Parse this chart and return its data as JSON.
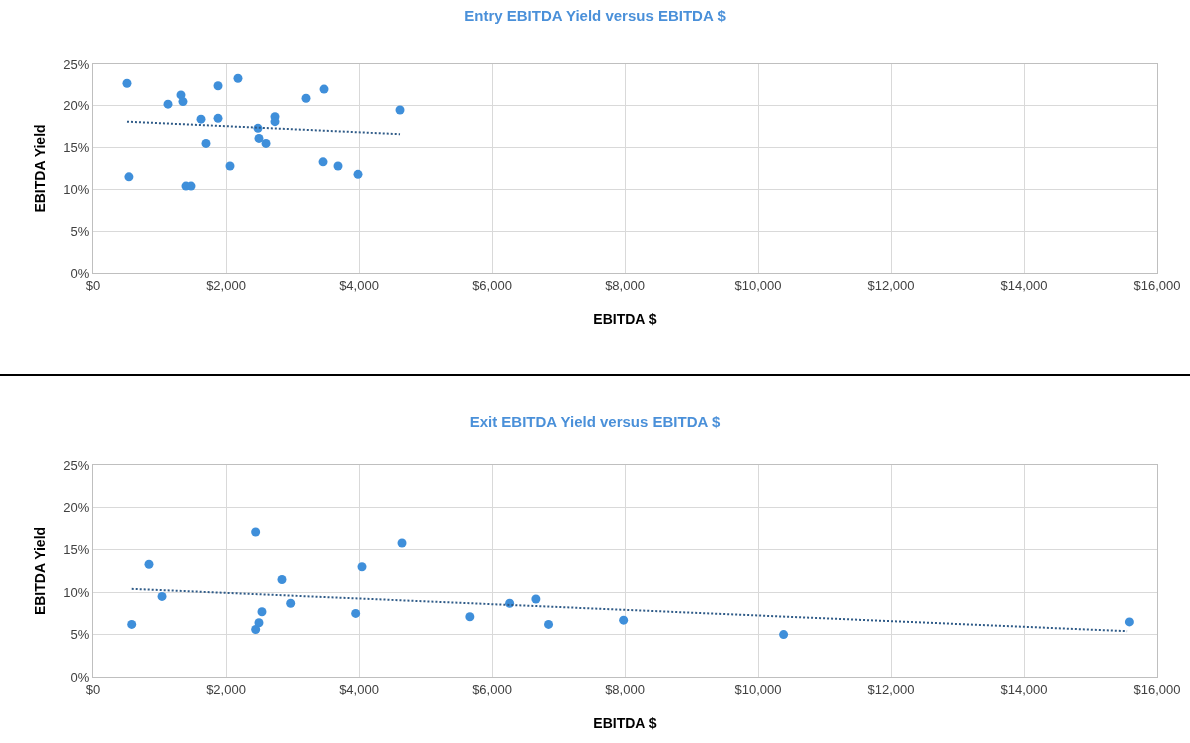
{
  "chart_data": [
    {
      "type": "scatter",
      "title": "Entry EBITDA Yield versus EBITDA $",
      "xlabel": "EBITDA $",
      "ylabel": "EBITDA Yield",
      "grid": true,
      "xlim": [
        0,
        16000
      ],
      "xticks": [
        {
          "value": 0,
          "label": "$0"
        },
        {
          "value": 2000,
          "label": "$2,000"
        },
        {
          "value": 4000,
          "label": "$4,000"
        },
        {
          "value": 6000,
          "label": "$6,000"
        },
        {
          "value": 8000,
          "label": "$8,000"
        },
        {
          "value": 10000,
          "label": "$10,000"
        },
        {
          "value": 12000,
          "label": "$12,000"
        },
        {
          "value": 14000,
          "label": "$14,000"
        },
        {
          "value": 16000,
          "label": "$16,000"
        }
      ],
      "ylim": [
        0,
        25
      ],
      "yticks": [
        {
          "value": 0,
          "label": "0%"
        },
        {
          "value": 5,
          "label": "5%"
        },
        {
          "value": 10,
          "label": "10%"
        },
        {
          "value": 15,
          "label": "15%"
        },
        {
          "value": 20,
          "label": "20%"
        },
        {
          "value": 25,
          "label": "25%"
        }
      ],
      "series": [
        {
          "marker": "circle",
          "color": "#3f8fda",
          "x": [
            511,
            540,
            1128,
            1323,
            1353,
            1398,
            1474,
            1624,
            1699,
            1880,
            1880,
            2060,
            2180,
            2481,
            2496,
            2602,
            2737,
            2737,
            3203,
            3474,
            3459,
            3684,
            3985,
            4617
          ],
          "values": [
            22.7,
            11.5,
            20.2,
            21.3,
            20.5,
            10.4,
            10.4,
            18.4,
            15.5,
            22.4,
            18.5,
            12.8,
            23.3,
            17.3,
            16.1,
            15.5,
            18.7,
            18.1,
            20.9,
            22.0,
            13.3,
            12.8,
            11.8,
            19.5
          ]
        },
        {
          "type": "line",
          "line_style": "dotted",
          "color": "#2e5a87",
          "x": [
            511,
            4617
          ],
          "values": [
            18.1,
            16.6
          ]
        }
      ]
    },
    {
      "type": "scatter",
      "title": "Exit EBITDA Yield versus EBITDA $",
      "xlabel": "EBITDA $",
      "ylabel": "EBITDA Yield",
      "grid": true,
      "xlim": [
        0,
        16000
      ],
      "xticks": [
        {
          "value": 0,
          "label": "$0"
        },
        {
          "value": 2000,
          "label": "$2,000"
        },
        {
          "value": 4000,
          "label": "$4,000"
        },
        {
          "value": 6000,
          "label": "$6,000"
        },
        {
          "value": 8000,
          "label": "$8,000"
        },
        {
          "value": 10000,
          "label": "$10,000"
        },
        {
          "value": 12000,
          "label": "$12,000"
        },
        {
          "value": 14000,
          "label": "$14,000"
        },
        {
          "value": 16000,
          "label": "$16,000"
        }
      ],
      "ylim": [
        0,
        25
      ],
      "yticks": [
        {
          "value": 0,
          "label": "0%"
        },
        {
          "value": 5,
          "label": "5%"
        },
        {
          "value": 10,
          "label": "10%"
        },
        {
          "value": 15,
          "label": "15%"
        },
        {
          "value": 20,
          "label": "20%"
        },
        {
          "value": 25,
          "label": "25%"
        }
      ],
      "series": [
        {
          "marker": "circle",
          "color": "#3f8fda",
          "x": [
            582,
            842,
            1038,
            2446,
            2446,
            2496,
            2541,
            2842,
            2973,
            3950,
            4045,
            4647,
            5667,
            6265,
            6660,
            6850,
            7980,
            10385,
            15585
          ],
          "values": [
            6.2,
            13.3,
            9.5,
            17.1,
            5.6,
            6.4,
            7.7,
            11.5,
            8.7,
            7.5,
            13.0,
            15.8,
            7.1,
            8.7,
            9.2,
            6.2,
            6.7,
            5.0,
            6.5
          ]
        },
        {
          "type": "line",
          "line_style": "dotted",
          "color": "#2e5a87",
          "x": [
            582,
            15550
          ],
          "values": [
            10.4,
            5.4
          ]
        }
      ]
    }
  ]
}
